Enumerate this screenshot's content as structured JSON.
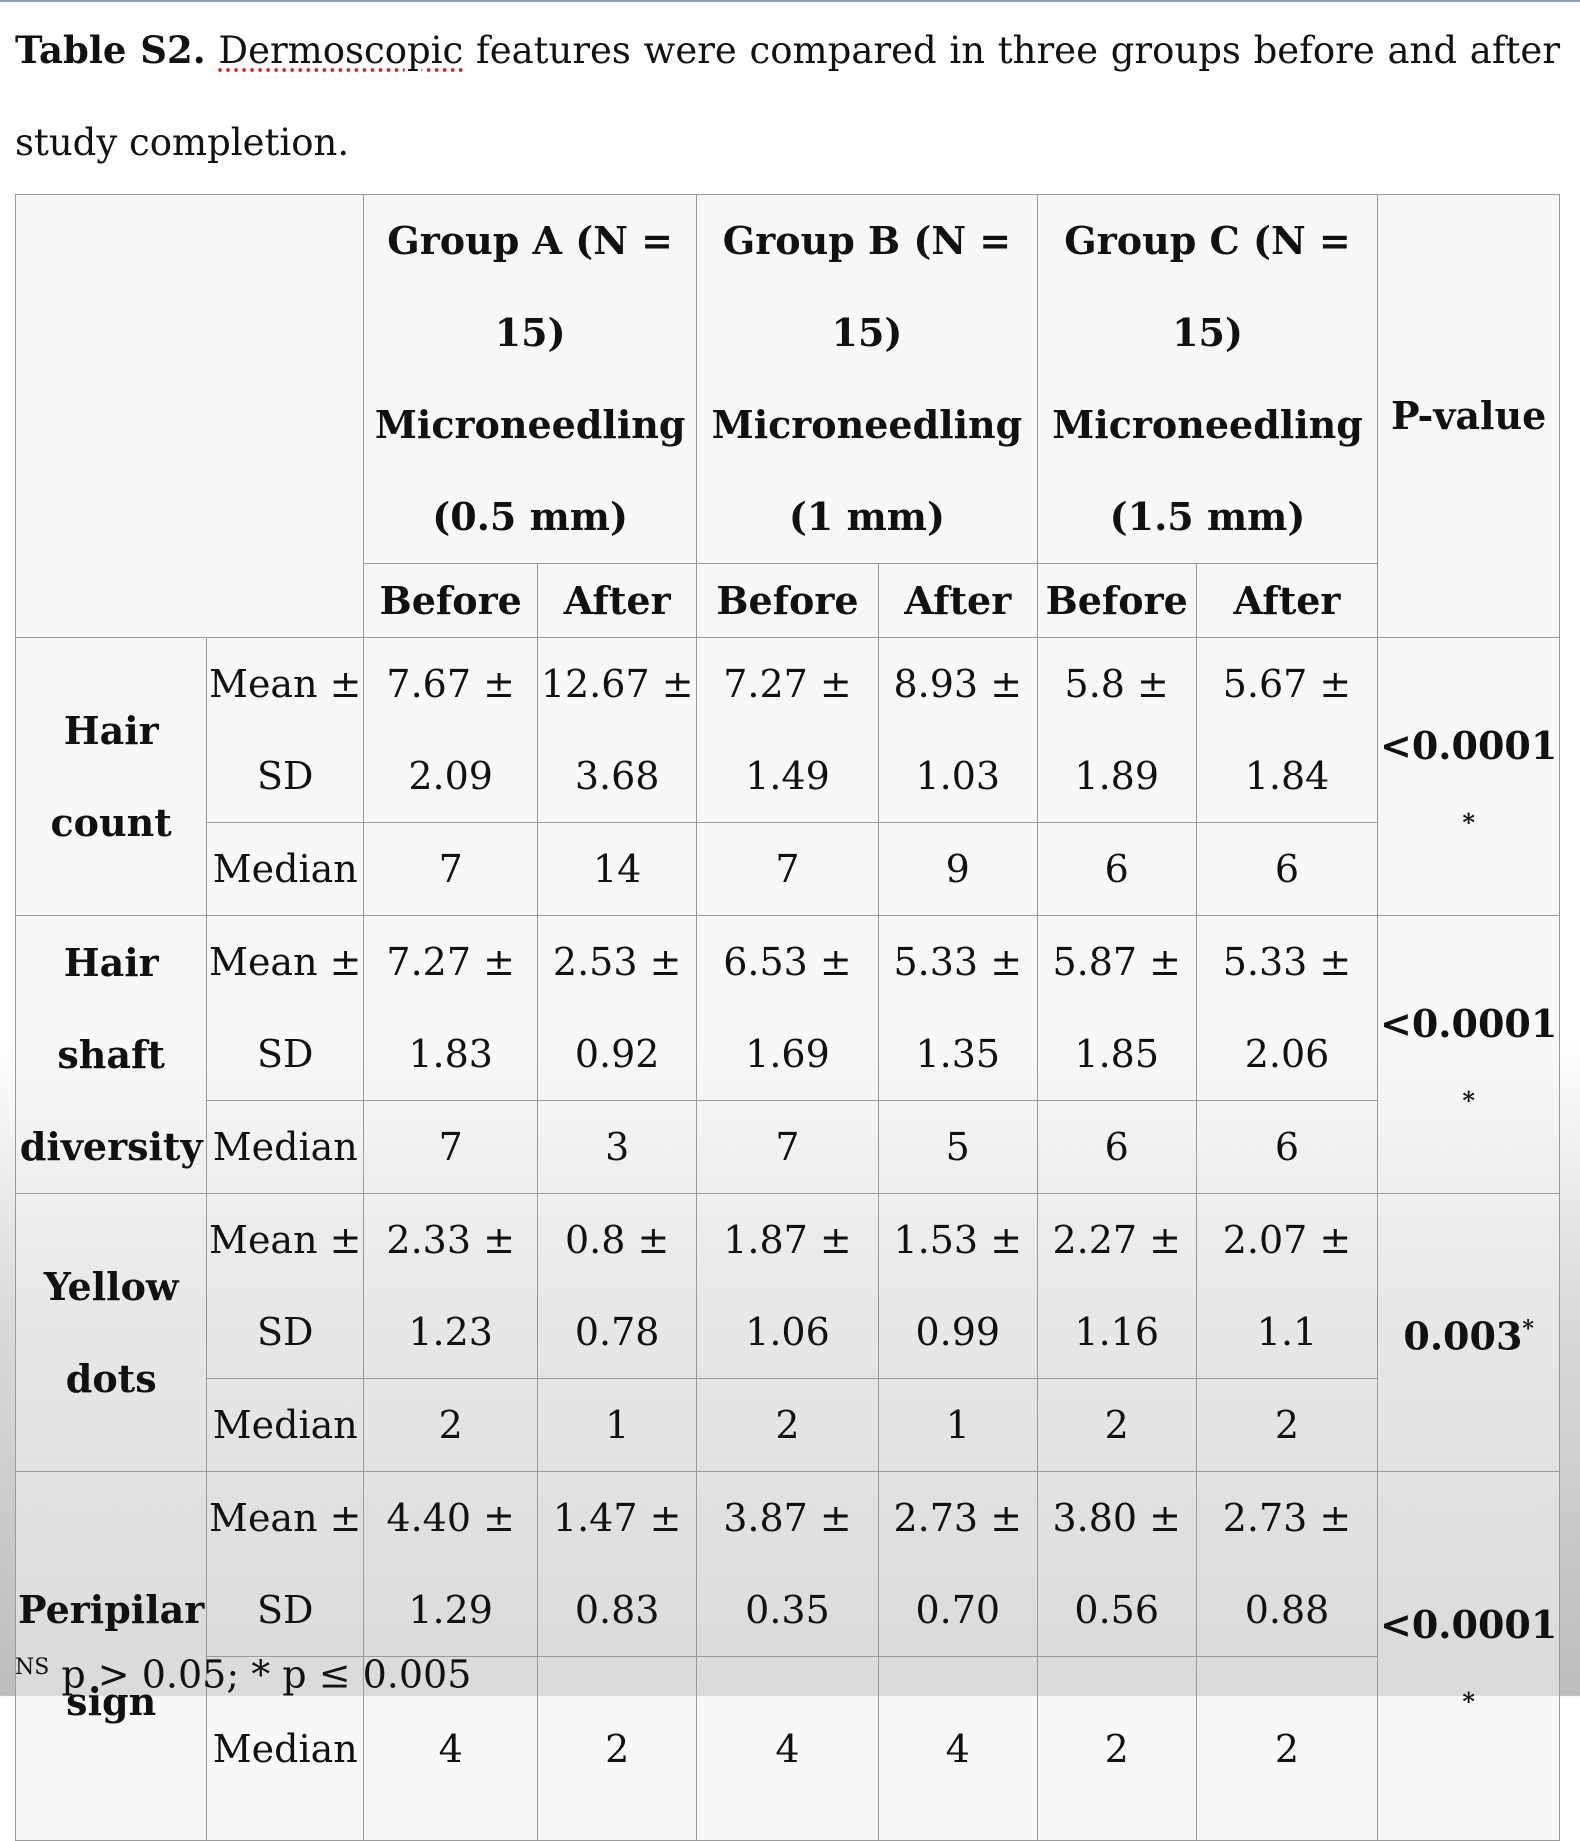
{
  "caption": {
    "label": "Table S2.",
    "word": "Dermoscopic",
    "text": "features were compared in three groups before and after study completion."
  },
  "header": {
    "groups": [
      {
        "line1": "Group A (N = 15)",
        "line2": "Microneedling",
        "line3": "(0.5 mm)"
      },
      {
        "line1": "Group B (N = 15)",
        "line2": "Microneedling",
        "line3": "(1 mm)"
      },
      {
        "line1": "Group C (N = 15)",
        "line2": "Microneedling",
        "line3": "(1.5 mm)"
      }
    ],
    "before": "Before",
    "after": "After",
    "pvalue": "P-value"
  },
  "stats": {
    "mean1": "Mean ±",
    "mean2": "SD",
    "median": "Median"
  },
  "rows": [
    {
      "label": [
        "Hair",
        "count"
      ],
      "mean": [
        [
          "7.67 ±",
          "2.09"
        ],
        [
          "12.67 ±",
          "3.68"
        ],
        [
          "7.27 ±",
          "1.49"
        ],
        [
          "8.93 ±",
          "1.03"
        ],
        [
          "5.8 ±",
          "1.89"
        ],
        [
          "5.67 ±",
          "1.84"
        ]
      ],
      "median": [
        "7",
        "14",
        "7",
        "9",
        "6",
        "6"
      ],
      "p": "<0.0001",
      "p_mark": "*"
    },
    {
      "label": [
        "Hair",
        "shaft",
        "diversity"
      ],
      "mean": [
        [
          "7.27 ±",
          "1.83"
        ],
        [
          "2.53 ±",
          "0.92"
        ],
        [
          "6.53 ±",
          "1.69"
        ],
        [
          "5.33 ±",
          "1.35"
        ],
        [
          "5.87 ±",
          "1.85"
        ],
        [
          "5.33 ±",
          "2.06"
        ]
      ],
      "median": [
        "7",
        "3",
        "7",
        "5",
        "6",
        "6"
      ],
      "p": "<0.0001",
      "p_mark": "*"
    },
    {
      "label": [
        "Yellow",
        "dots"
      ],
      "mean": [
        [
          "2.33 ±",
          "1.23"
        ],
        [
          "0.8 ±",
          "0.78"
        ],
        [
          "1.87 ±",
          "1.06"
        ],
        [
          "1.53 ±",
          "0.99"
        ],
        [
          "2.27 ±",
          "1.16"
        ],
        [
          "2.07 ±",
          "1.1"
        ]
      ],
      "median": [
        "2",
        "1",
        "2",
        "1",
        "2",
        "2"
      ],
      "p": "0.003",
      "p_mark": "*"
    },
    {
      "label": [
        "Peripilar",
        "sign"
      ],
      "mean": [
        [
          "4.40 ±",
          "1.29"
        ],
        [
          "1.47 ±",
          "0.83"
        ],
        [
          "3.87 ±",
          "0.35"
        ],
        [
          "2.73 ±",
          "0.70"
        ],
        [
          "3.80 ±",
          "0.56"
        ],
        [
          "2.73 ±",
          "0.88"
        ]
      ],
      "median": [
        "4",
        "2",
        "4",
        "4",
        "2",
        "2"
      ],
      "p": "<0.0001",
      "p_mark": "*"
    }
  ],
  "footnote": {
    "ns": "NS",
    "text": " p > 0.05; * p ≤ 0.005"
  }
}
